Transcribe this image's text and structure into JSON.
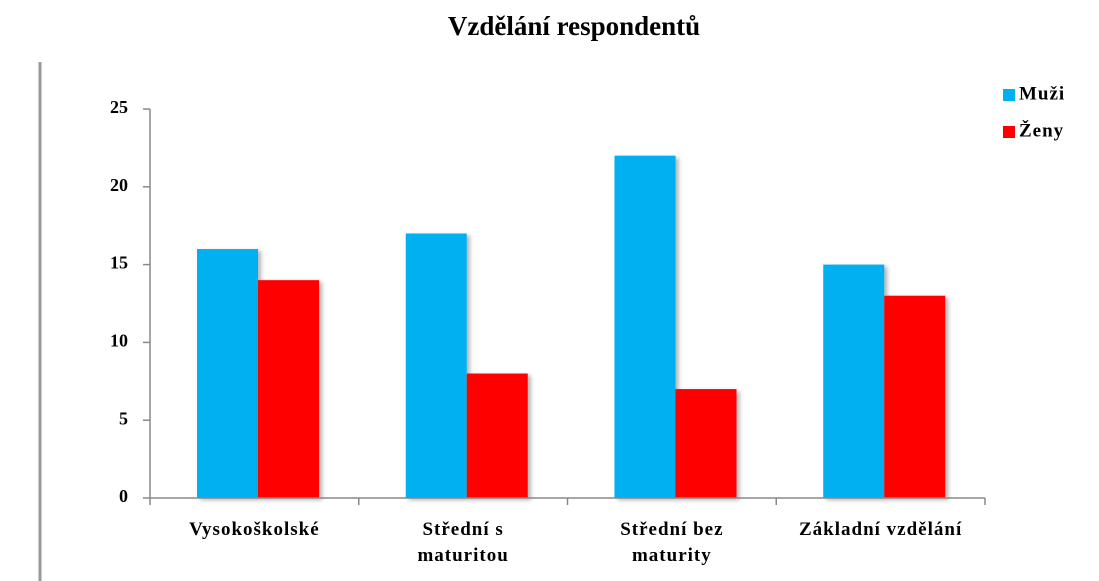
{
  "chart_data": {
    "type": "bar",
    "title": "Vzdělání respondentů",
    "categories": [
      "Vysokoškolské",
      "Střední s\nmaturitou",
      "Střední bez\nmaturity",
      "Základní vzdělání"
    ],
    "series": [
      {
        "name": "Muži",
        "color": "#00b0f0",
        "values": [
          16,
          17,
          22,
          15
        ]
      },
      {
        "name": "Ženy",
        "color": "#ff0000",
        "values": [
          14,
          8,
          7,
          13
        ]
      }
    ],
    "ylim": [
      0,
      25
    ],
    "yticks": [
      0,
      5,
      10,
      15,
      20,
      25
    ],
    "grid": false,
    "legend": "top-right"
  }
}
